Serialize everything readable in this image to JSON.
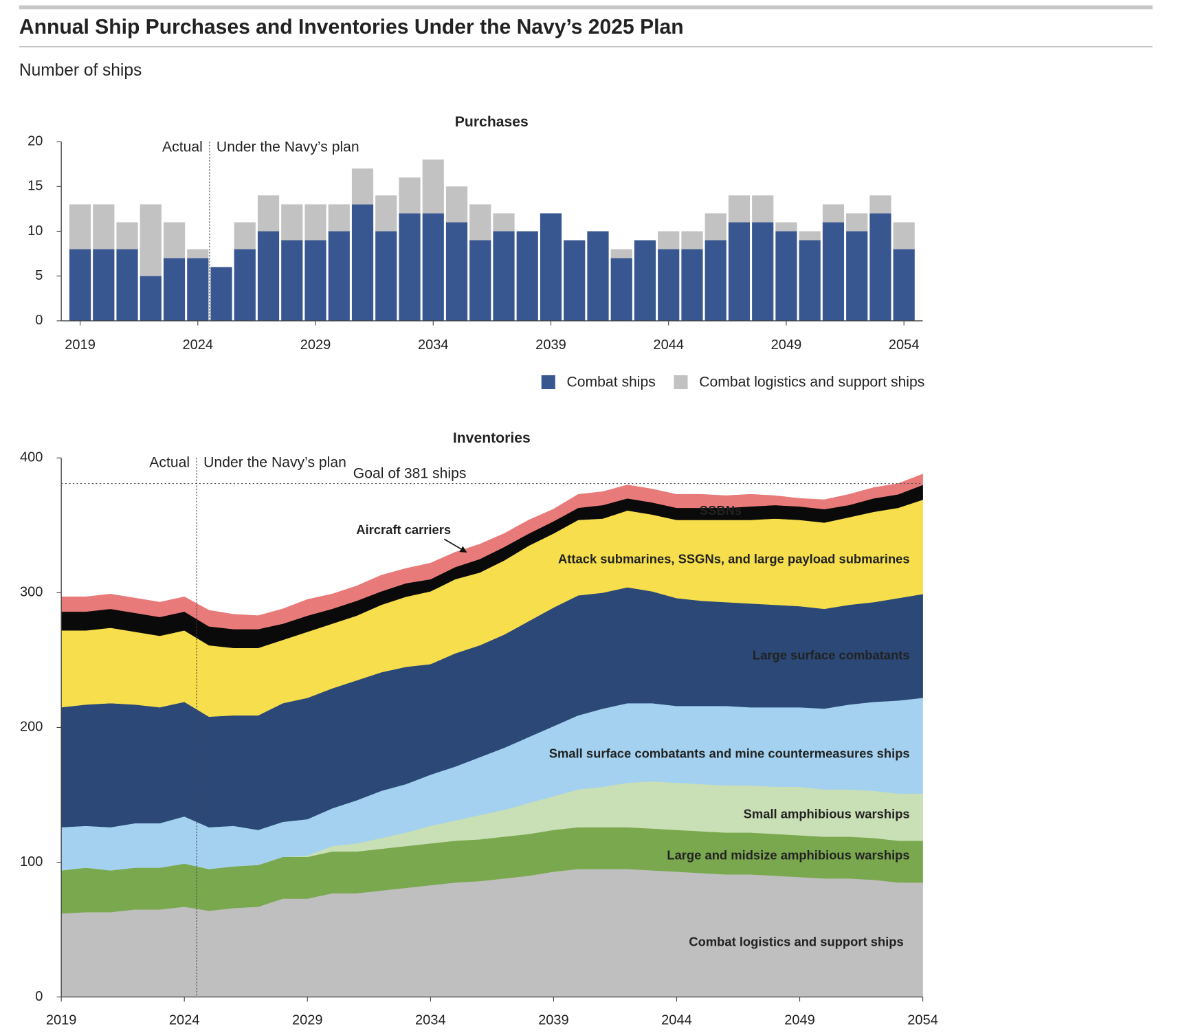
{
  "title": "Annual Ship Purchases and Inventories Under the Navy’s 2025 Plan",
  "subtitle": "Number of ships",
  "chart_data": [
    {
      "type": "bar",
      "stacked": true,
      "title": "Purchases",
      "x": [
        2019,
        2020,
        2021,
        2022,
        2023,
        2024,
        2025,
        2026,
        2027,
        2028,
        2029,
        2030,
        2031,
        2032,
        2033,
        2034,
        2035,
        2036,
        2037,
        2038,
        2039,
        2040,
        2041,
        2042,
        2043,
        2044,
        2045,
        2046,
        2047,
        2048,
        2049,
        2050,
        2051,
        2052,
        2053,
        2054
      ],
      "xlim": [
        2018.2,
        2054.8
      ],
      "xticks": [
        2019,
        2024,
        2029,
        2034,
        2039,
        2044,
        2049,
        2054
      ],
      "ylim": [
        0,
        20
      ],
      "yticks": [
        0,
        5,
        10,
        15,
        20
      ],
      "divider": 2024.5,
      "annotations": [
        "Actual",
        "Under the Navy’s plan"
      ],
      "legend": "bottom-right",
      "series": [
        {
          "name": "Combat ships",
          "color": "#38568f",
          "values": [
            8,
            8,
            8,
            5,
            7,
            7,
            6,
            8,
            10,
            9,
            9,
            10,
            13,
            10,
            12,
            12,
            11,
            9,
            10,
            10,
            12,
            9,
            10,
            7,
            9,
            8,
            8,
            9,
            11,
            11,
            10,
            9,
            11,
            10,
            12,
            8
          ]
        },
        {
          "name": "Combat logistics and support ships",
          "color": "#c2c2c2",
          "values": [
            5,
            5,
            3,
            8,
            4,
            1,
            0,
            3,
            4,
            4,
            4,
            3,
            4,
            4,
            4,
            6,
            4,
            4,
            2,
            0,
            0,
            0,
            0,
            1,
            0,
            2,
            2,
            3,
            3,
            3,
            1,
            1,
            2,
            2,
            2,
            3
          ]
        }
      ]
    },
    {
      "type": "area",
      "stacked": true,
      "title": "Inventories",
      "x": [
        2019,
        2020,
        2021,
        2022,
        2023,
        2024,
        2025,
        2026,
        2027,
        2028,
        2029,
        2030,
        2031,
        2032,
        2033,
        2034,
        2035,
        2036,
        2037,
        2038,
        2039,
        2040,
        2041,
        2042,
        2043,
        2044,
        2045,
        2046,
        2047,
        2048,
        2049,
        2050,
        2051,
        2052,
        2053,
        2054
      ],
      "xlim": [
        2019,
        2054
      ],
      "xticks": [
        2019,
        2024,
        2029,
        2034,
        2039,
        2044,
        2049,
        2054
      ],
      "ylim": [
        0,
        400
      ],
      "yticks": [
        0,
        100,
        200,
        300,
        400
      ],
      "divider": 2024.5,
      "annotations": [
        "Actual",
        "Under the Navy’s plan"
      ],
      "goal": {
        "value": 381,
        "label": "Goal of 381 ships"
      },
      "series": [
        {
          "name": "Combat logistics and support ships",
          "color": "#bfbfbf",
          "values": [
            62,
            63,
            63,
            65,
            65,
            67,
            64,
            66,
            67,
            73,
            73,
            77,
            77,
            79,
            81,
            83,
            85,
            86,
            88,
            90,
            93,
            95,
            95,
            95,
            94,
            93,
            92,
            91,
            91,
            90,
            89,
            88,
            88,
            87,
            85,
            85
          ]
        },
        {
          "name": "Large and midsize amphibious warships",
          "color": "#7aa84f",
          "values": [
            32,
            33,
            31,
            31,
            31,
            32,
            31,
            31,
            31,
            31,
            31,
            31,
            31,
            31,
            31,
            31,
            31,
            31,
            31,
            31,
            31,
            31,
            31,
            31,
            31,
            31,
            31,
            31,
            31,
            31,
            31,
            31,
            31,
            31,
            31,
            31
          ]
        },
        {
          "name": "Small amphibious warships",
          "color": "#c9dfb5",
          "values": [
            0,
            0,
            0,
            0,
            0,
            0,
            0,
            0,
            0,
            0,
            1,
            4,
            6,
            8,
            10,
            13,
            15,
            18,
            20,
            23,
            25,
            28,
            30,
            33,
            35,
            35,
            35,
            35,
            35,
            35,
            36,
            35,
            35,
            35,
            35,
            35
          ]
        },
        {
          "name": "Small surface combatants and mine countermeasures ships",
          "color": "#a3d1ef",
          "values": [
            32,
            31,
            32,
            33,
            33,
            35,
            31,
            30,
            26,
            26,
            27,
            28,
            32,
            35,
            36,
            38,
            40,
            43,
            46,
            49,
            52,
            55,
            58,
            59,
            58,
            57,
            58,
            59,
            58,
            59,
            59,
            60,
            63,
            66,
            69,
            71
          ]
        },
        {
          "name": "Large surface combatants",
          "color": "#2b4877",
          "values": [
            89,
            90,
            92,
            88,
            86,
            85,
            82,
            82,
            85,
            88,
            90,
            89,
            89,
            88,
            87,
            82,
            84,
            83,
            84,
            86,
            88,
            89,
            86,
            86,
            83,
            80,
            78,
            77,
            77,
            76,
            75,
            74,
            74,
            74,
            76,
            77
          ]
        },
        {
          "name": "Attack submarines, SSGNs, and large payload submarines",
          "color": "#f6de4c",
          "values": [
            57,
            55,
            56,
            54,
            53,
            53,
            53,
            50,
            50,
            47,
            49,
            48,
            48,
            50,
            52,
            54,
            55,
            54,
            55,
            56,
            55,
            56,
            55,
            57,
            57,
            58,
            60,
            61,
            62,
            64,
            64,
            64,
            65,
            67,
            67,
            70
          ]
        },
        {
          "name": "SSBNs",
          "color": "#0a0a0a",
          "values": [
            14,
            14,
            14,
            14,
            14,
            14,
            14,
            14,
            14,
            12,
            12,
            11,
            11,
            10,
            10,
            9,
            9,
            10,
            10,
            9,
            9,
            9,
            10,
            9,
            9,
            9,
            9,
            9,
            10,
            10,
            10,
            10,
            9,
            10,
            10,
            11
          ]
        },
        {
          "name": "Aircraft carriers",
          "color": "#e97a7a",
          "values": [
            11,
            11,
            11,
            11,
            11,
            11,
            12,
            11,
            10,
            11,
            12,
            11,
            11,
            12,
            11,
            12,
            11,
            11,
            10,
            10,
            9,
            10,
            10,
            10,
            10,
            10,
            10,
            9,
            9,
            7,
            6,
            7,
            8,
            8,
            8,
            8
          ]
        }
      ]
    }
  ]
}
